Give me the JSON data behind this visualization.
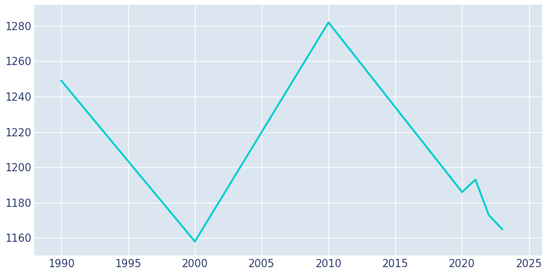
{
  "years": [
    1990,
    2000,
    2010,
    2020,
    2021,
    2022,
    2023
  ],
  "population": [
    1249,
    1158,
    1282,
    1186,
    1193,
    1173,
    1165
  ],
  "line_color": "#00CED1",
  "axes_background_color": "#dce6f0",
  "fig_background_color": "#ffffff",
  "line_width": 2.0,
  "xlim": [
    1988,
    2026
  ],
  "ylim": [
    1150,
    1292
  ],
  "yticks": [
    1160,
    1180,
    1200,
    1220,
    1240,
    1260,
    1280
  ],
  "xticks": [
    1990,
    1995,
    2000,
    2005,
    2010,
    2015,
    2020,
    2025
  ],
  "tick_label_color": "#2d3b6e",
  "grid_color": "#ffffff",
  "grid_linewidth": 0.8,
  "tick_labelsize": 11,
  "figsize": [
    8.0,
    4.0
  ],
  "dpi": 100
}
